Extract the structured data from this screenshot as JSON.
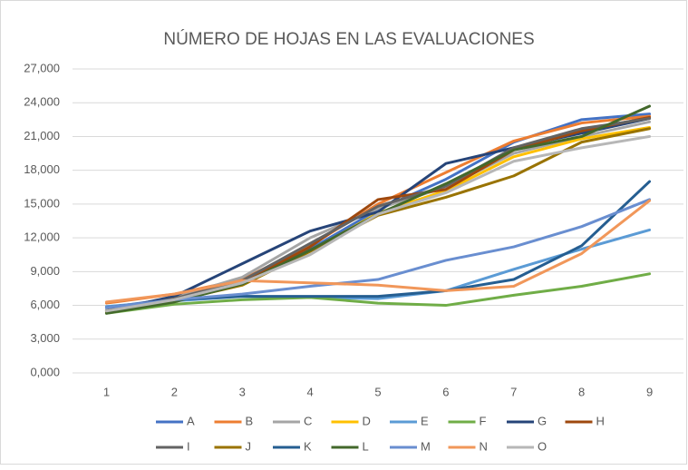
{
  "chart_data": {
    "type": "line",
    "title": "NÚMERO DE HOJAS EN LAS EVALUACIONES",
    "categories": [
      "1",
      "2",
      "3",
      "4",
      "5",
      "6",
      "7",
      "8",
      "9"
    ],
    "ylim": [
      0,
      27000
    ],
    "yticks": [
      {
        "value": 0,
        "label": "0,000"
      },
      {
        "value": 3000,
        "label": "3,000"
      },
      {
        "value": 6000,
        "label": "6,000"
      },
      {
        "value": 9000,
        "label": "9,000"
      },
      {
        "value": 12000,
        "label": "12,000"
      },
      {
        "value": 15000,
        "label": "15,000"
      },
      {
        "value": 18000,
        "label": "18,000"
      },
      {
        "value": 21000,
        "label": "21,000"
      },
      {
        "value": 24000,
        "label": "24,000"
      },
      {
        "value": 27000,
        "label": "27,000"
      }
    ],
    "grid": true,
    "legend": "bottom",
    "series": [
      {
        "name": "A",
        "color": "#4472c4",
        "values": [
          5800,
          6600,
          8000,
          11000,
          14500,
          17200,
          20500,
          22500,
          23000
        ]
      },
      {
        "name": "B",
        "color": "#ed7d31",
        "values": [
          6200,
          7000,
          8300,
          11300,
          15000,
          17800,
          20600,
          22200,
          22800
        ]
      },
      {
        "name": "C",
        "color": "#a5a5a5",
        "values": [
          5600,
          6700,
          8500,
          12000,
          14600,
          16500,
          19500,
          21000,
          22300
        ]
      },
      {
        "name": "D",
        "color": "#ffc000",
        "values": [
          5500,
          6500,
          7800,
          10800,
          14200,
          16200,
          19200,
          20800,
          21800
        ]
      },
      {
        "name": "E",
        "color": "#5b9bd5",
        "values": [
          5900,
          6400,
          6800,
          6700,
          6600,
          7300,
          9200,
          11000,
          12700
        ]
      },
      {
        "name": "F",
        "color": "#70ad47",
        "values": [
          5300,
          6100,
          6500,
          6700,
          6200,
          6000,
          6900,
          7700,
          8800
        ]
      },
      {
        "name": "G",
        "color": "#264478",
        "values": [
          5500,
          6800,
          9700,
          12600,
          14300,
          18600,
          20000,
          21300,
          22600
        ]
      },
      {
        "name": "H",
        "color": "#9e480e",
        "values": [
          5500,
          6600,
          8000,
          11200,
          15400,
          16300,
          19800,
          21500,
          22700
        ]
      },
      {
        "name": "I",
        "color": "#636363",
        "values": [
          5500,
          6600,
          8200,
          11500,
          14800,
          16600,
          20000,
          21700,
          22600
        ]
      },
      {
        "name": "J",
        "color": "#997300",
        "values": [
          5400,
          6400,
          7800,
          10800,
          14000,
          15600,
          17500,
          20500,
          21700
        ]
      },
      {
        "name": "K",
        "color": "#255e91",
        "values": [
          5800,
          6500,
          6800,
          6800,
          6800,
          7300,
          8300,
          11300,
          17000
        ]
      },
      {
        "name": "L",
        "color": "#43682b",
        "values": [
          5300,
          6300,
          7900,
          10900,
          14100,
          16800,
          19800,
          21000,
          23700
        ]
      },
      {
        "name": "M",
        "color": "#698ed0",
        "values": [
          5800,
          6500,
          7000,
          7700,
          8300,
          10000,
          11200,
          13000,
          15400
        ]
      },
      {
        "name": "N",
        "color": "#f1975a",
        "values": [
          6300,
          7000,
          8200,
          8000,
          7800,
          7300,
          7700,
          10600,
          15300
        ]
      },
      {
        "name": "O",
        "color": "#b7b7b7",
        "values": [
          5500,
          6500,
          8000,
          10500,
          14100,
          16000,
          18800,
          20000,
          21000
        ]
      }
    ]
  }
}
